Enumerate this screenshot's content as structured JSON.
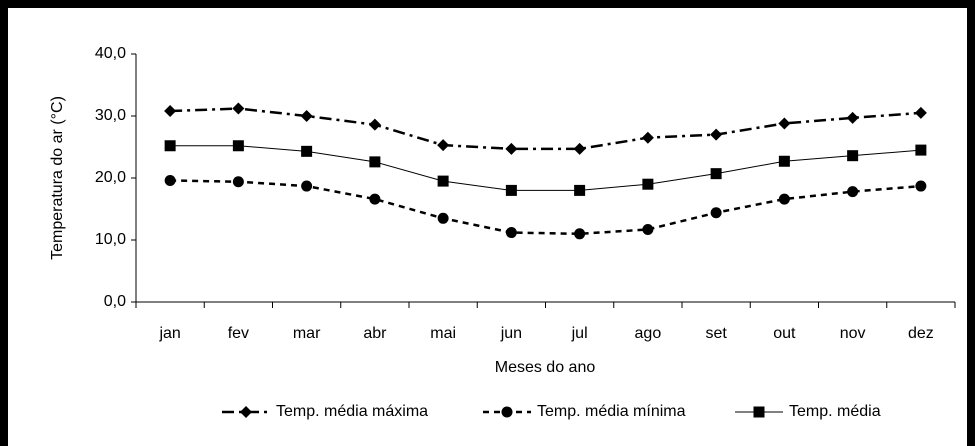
{
  "chart_data": {
    "type": "line",
    "y_label": "Temperatura do ar (°C)",
    "x_label": "Meses do ano",
    "categories": [
      "jan",
      "fev",
      "mar",
      "abr",
      "mai",
      "jun",
      "jul",
      "ago",
      "set",
      "out",
      "nov",
      "dez"
    ],
    "series": [
      {
        "name": "Temp. média máxima",
        "color": "#000000",
        "marker": "diamond",
        "dash": "dashdot",
        "values": [
          30.8,
          31.2,
          30.0,
          28.6,
          25.3,
          24.7,
          24.7,
          26.5,
          27.0,
          28.8,
          29.7,
          30.5
        ]
      },
      {
        "name": "Temp. média mínima",
        "color": "#000000",
        "marker": "circle",
        "dash": "dashed",
        "values": [
          19.6,
          19.4,
          18.7,
          16.6,
          13.5,
          11.2,
          11.0,
          11.7,
          14.4,
          16.6,
          17.8,
          18.7
        ]
      },
      {
        "name": "Temp. média",
        "color": "#000000",
        "marker": "square",
        "dash": "solid",
        "values": [
          25.2,
          25.2,
          24.3,
          22.6,
          19.5,
          18.0,
          18.0,
          19.0,
          20.7,
          22.7,
          23.6,
          24.5
        ]
      }
    ],
    "ylim": [
      0,
      40
    ],
    "yticks": [
      {
        "value": 0,
        "label": "0,0"
      },
      {
        "value": 10,
        "label": "10,0"
      },
      {
        "value": 20,
        "label": "20,0"
      },
      {
        "value": 30,
        "label": "30,0"
      },
      {
        "value": 40,
        "label": "40,0"
      }
    ],
    "grid": false,
    "legend": "bottom"
  }
}
